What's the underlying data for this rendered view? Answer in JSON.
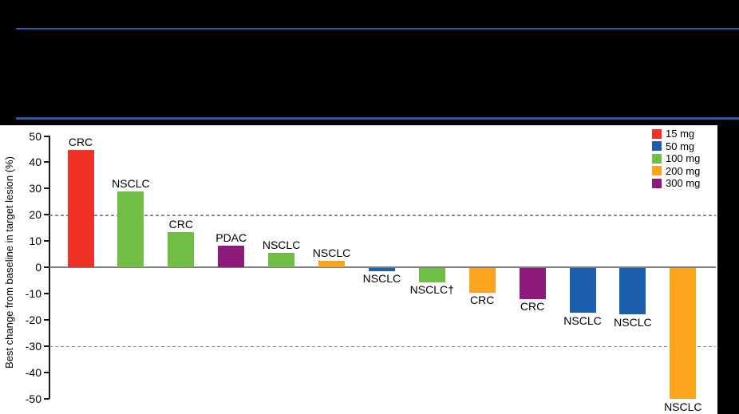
{
  "accent_rule_color": "#1F5FAC",
  "chart_data": {
    "type": "bar",
    "title": "",
    "xlabel": "",
    "ylabel": "Best change from baseline in target lesion (%)",
    "ylim": [
      -50,
      50
    ],
    "yticks": [
      50,
      40,
      30,
      20,
      10,
      0,
      -10,
      -20,
      -30,
      -40,
      -50
    ],
    "reference_lines": [
      20,
      -30
    ],
    "grid": "dashed-reference-only",
    "legend_position": "top-right",
    "legend": [
      {
        "label": "15 mg",
        "color": "#EE3124"
      },
      {
        "label": "50 mg",
        "color": "#1C5FAC"
      },
      {
        "label": "100 mg",
        "color": "#70BE44"
      },
      {
        "label": "200 mg",
        "color": "#FAA51D"
      },
      {
        "label": "300 mg",
        "color": "#8E1B7B"
      }
    ],
    "bars": [
      {
        "label": "CRC",
        "dose": "15 mg",
        "value": 44.7
      },
      {
        "label": "NSCLC",
        "dose": "100 mg",
        "value": 28.8
      },
      {
        "label": "CRC",
        "dose": "100 mg",
        "value": 13.5
      },
      {
        "label": "PDAC",
        "dose": "300 mg",
        "value": 8.3
      },
      {
        "label": "NSCLC",
        "dose": "100 mg",
        "value": 5.4
      },
      {
        "label": "NSCLC",
        "dose": "200 mg",
        "value": 2.4
      },
      {
        "label": "NSCLC",
        "dose": "50 mg",
        "value": -1.2
      },
      {
        "label": "NSCLC†",
        "dose": "100 mg",
        "value": -5.5
      },
      {
        "label": "CRC",
        "dose": "200 mg",
        "value": -9.5
      },
      {
        "label": "CRC",
        "dose": "300 mg",
        "value": -12.0
      },
      {
        "label": "NSCLC",
        "dose": "50 mg",
        "value": -17.2
      },
      {
        "label": "NSCLC",
        "dose": "50 mg",
        "value": -17.8
      },
      {
        "label": "NSCLC",
        "dose": "200 mg",
        "value": -50.0
      }
    ]
  }
}
